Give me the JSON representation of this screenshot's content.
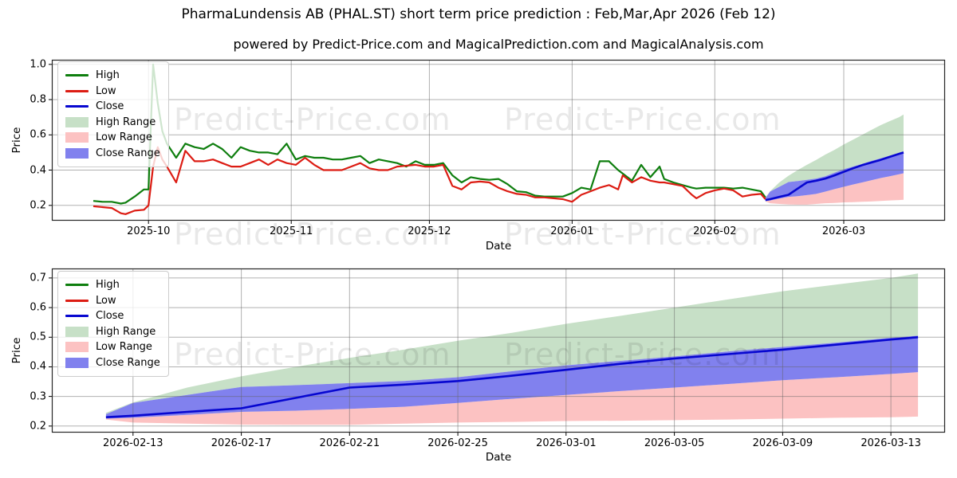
{
  "page": {
    "title": "PharmaLundensis AB (PHAL.ST) short term price prediction : Feb,Mar,Apr 2026 (Feb 12)",
    "subtitle": "powered by Predict-Price.com and MagicalPrediction.com and MagicalAnalysis.com"
  },
  "watermark": {
    "text": "Predict-Price.com"
  },
  "colors": {
    "high_line": "#0e7e0e",
    "low_line": "#dc1c13",
    "close_line": "#0707d0",
    "high_range": "#c7e0c7",
    "low_range": "#fcc2c2",
    "close_range": "#8181ee",
    "grid": "rgba(100,100,100,0.5)",
    "spine": "#262626",
    "tick": "#000000"
  },
  "legend": {
    "items": [
      {
        "label": "High",
        "swatch": "line",
        "color": "#0e7e0e"
      },
      {
        "label": "Low",
        "swatch": "line",
        "color": "#dc1c13"
      },
      {
        "label": "Close",
        "swatch": "line",
        "color": "#0707d0"
      },
      {
        "label": "High Range",
        "swatch": "patch",
        "color": "#c7e0c7"
      },
      {
        "label": "Low Range",
        "swatch": "patch",
        "color": "#fcc2c2"
      },
      {
        "label": "Close Range",
        "swatch": "patch",
        "color": "#8181ee"
      }
    ]
  },
  "chart_data": [
    {
      "type": "line",
      "name": "history-and-forecast",
      "xlabel": "Date",
      "ylabel": "Price",
      "grid": true,
      "legend_position": "upper left",
      "xlim": [
        "2025-09-10",
        "2026-03-23"
      ],
      "ylim": [
        0.113,
        1.026
      ],
      "x_ticks": [
        {
          "date": "2025-10-01",
          "label": "2025-10"
        },
        {
          "date": "2025-11-01",
          "label": "2025-11"
        },
        {
          "date": "2025-12-01",
          "label": "2025-12"
        },
        {
          "date": "2026-01-01",
          "label": "2026-01"
        },
        {
          "date": "2026-02-01",
          "label": "2026-02"
        },
        {
          "date": "2026-03-01",
          "label": "2026-03"
        }
      ],
      "y_ticks": [
        {
          "v": 0.2,
          "label": "0.2"
        },
        {
          "v": 0.4,
          "label": "0.4"
        },
        {
          "v": 0.6,
          "label": "0.6"
        },
        {
          "v": 0.8,
          "label": "0.8"
        },
        {
          "v": 1.0,
          "label": "1.0"
        }
      ],
      "series": {
        "dates": [
          "2025-09-19",
          "2025-09-21",
          "2025-09-23",
          "2025-09-25",
          "2025-09-26",
          "2025-09-28",
          "2025-09-30",
          "2025-10-01",
          "2025-10-02",
          "2025-10-03",
          "2025-10-04",
          "2025-10-05",
          "2025-10-07",
          "2025-10-09",
          "2025-10-11",
          "2025-10-13",
          "2025-10-15",
          "2025-10-17",
          "2025-10-19",
          "2025-10-21",
          "2025-10-23",
          "2025-10-25",
          "2025-10-27",
          "2025-10-29",
          "2025-10-31",
          "2025-11-02",
          "2025-11-04",
          "2025-11-06",
          "2025-11-08",
          "2025-11-10",
          "2025-11-12",
          "2025-11-14",
          "2025-11-16",
          "2025-11-18",
          "2025-11-20",
          "2025-11-22",
          "2025-11-24",
          "2025-11-26",
          "2025-11-28",
          "2025-11-30",
          "2025-12-02",
          "2025-12-04",
          "2025-12-06",
          "2025-12-08",
          "2025-12-10",
          "2025-12-12",
          "2025-12-14",
          "2025-12-16",
          "2025-12-18",
          "2025-12-20",
          "2025-12-22",
          "2025-12-24",
          "2025-12-26",
          "2025-12-28",
          "2025-12-30",
          "2026-01-01",
          "2026-01-03",
          "2026-01-05",
          "2026-01-07",
          "2026-01-09",
          "2026-01-11",
          "2026-01-12",
          "2026-01-14",
          "2026-01-16",
          "2026-01-18",
          "2026-01-20",
          "2026-01-21",
          "2026-01-23",
          "2026-01-25",
          "2026-01-27",
          "2026-01-28",
          "2026-01-30",
          "2026-02-01",
          "2026-02-03",
          "2026-02-05",
          "2026-02-07",
          "2026-02-09",
          "2026-02-11",
          "2026-02-12"
        ],
        "high": [
          0.225,
          0.22,
          0.22,
          0.21,
          0.215,
          0.25,
          0.29,
          0.29,
          1.0,
          0.78,
          0.62,
          0.55,
          0.47,
          0.55,
          0.53,
          0.52,
          0.55,
          0.52,
          0.47,
          0.53,
          0.51,
          0.5,
          0.5,
          0.49,
          0.55,
          0.46,
          0.48,
          0.47,
          0.47,
          0.46,
          0.46,
          0.47,
          0.48,
          0.44,
          0.46,
          0.45,
          0.44,
          0.42,
          0.45,
          0.43,
          0.43,
          0.44,
          0.37,
          0.33,
          0.36,
          0.35,
          0.345,
          0.35,
          0.32,
          0.28,
          0.275,
          0.255,
          0.25,
          0.25,
          0.25,
          0.27,
          0.3,
          0.29,
          0.45,
          0.45,
          0.4,
          0.38,
          0.34,
          0.43,
          0.36,
          0.42,
          0.35,
          0.33,
          0.315,
          0.3,
          0.295,
          0.3,
          0.3,
          0.3,
          0.295,
          0.3,
          0.29,
          0.28,
          0.245
        ],
        "low": [
          0.195,
          0.19,
          0.185,
          0.155,
          0.15,
          0.17,
          0.175,
          0.2,
          0.42,
          0.53,
          0.46,
          0.42,
          0.33,
          0.51,
          0.45,
          0.45,
          0.46,
          0.44,
          0.42,
          0.42,
          0.44,
          0.46,
          0.43,
          0.46,
          0.44,
          0.43,
          0.47,
          0.43,
          0.4,
          0.4,
          0.4,
          0.42,
          0.44,
          0.41,
          0.4,
          0.4,
          0.42,
          0.425,
          0.43,
          0.42,
          0.42,
          0.43,
          0.31,
          0.29,
          0.33,
          0.335,
          0.33,
          0.3,
          0.28,
          0.265,
          0.26,
          0.245,
          0.245,
          0.24,
          0.235,
          0.22,
          0.26,
          0.28,
          0.3,
          0.315,
          0.29,
          0.37,
          0.33,
          0.36,
          0.34,
          0.33,
          0.33,
          0.32,
          0.31,
          0.26,
          0.24,
          0.27,
          0.285,
          0.295,
          0.285,
          0.25,
          0.26,
          0.265,
          0.235
        ]
      },
      "forecast": {
        "dates": [
          "2026-02-12",
          "2026-02-13",
          "2026-02-15",
          "2026-02-17",
          "2026-02-19",
          "2026-02-21",
          "2026-02-23",
          "2026-02-25",
          "2026-02-27",
          "2026-03-01",
          "2026-03-03",
          "2026-03-05",
          "2026-03-07",
          "2026-03-09",
          "2026-03-11",
          "2026-03-13",
          "2026-03-14"
        ],
        "close": [
          0.23,
          0.235,
          0.248,
          0.26,
          0.295,
          0.33,
          0.34,
          0.352,
          0.37,
          0.39,
          0.41,
          0.428,
          0.443,
          0.458,
          0.475,
          0.492,
          0.5
        ],
        "close_max": [
          0.24,
          0.278,
          0.305,
          0.332,
          0.338,
          0.345,
          0.352,
          0.365,
          0.385,
          0.405,
          0.42,
          0.435,
          0.452,
          0.467,
          0.482,
          0.498,
          0.505
        ],
        "close_min": [
          0.225,
          0.228,
          0.238,
          0.248,
          0.252,
          0.258,
          0.265,
          0.278,
          0.292,
          0.305,
          0.318,
          0.33,
          0.342,
          0.355,
          0.365,
          0.376,
          0.382
        ],
        "high_max": [
          0.245,
          0.28,
          0.33,
          0.368,
          0.4,
          0.43,
          0.458,
          0.488,
          0.515,
          0.545,
          0.572,
          0.6,
          0.628,
          0.655,
          0.678,
          0.7,
          0.715
        ],
        "low_min": [
          0.222,
          0.212,
          0.208,
          0.205,
          0.204,
          0.204,
          0.208,
          0.212,
          0.214,
          0.217,
          0.218,
          0.22,
          0.222,
          0.225,
          0.228,
          0.23,
          0.232
        ]
      }
    },
    {
      "type": "line",
      "name": "forecast-detail",
      "xlabel": "Date",
      "ylabel": "Price",
      "grid": true,
      "legend_position": "upper left",
      "xlim": [
        "2026-02-10",
        "2026-03-15"
      ],
      "ylim": [
        0.178,
        0.732
      ],
      "x_ticks": [
        {
          "date": "2026-02-13",
          "label": "2026-02-13"
        },
        {
          "date": "2026-02-17",
          "label": "2026-02-17"
        },
        {
          "date": "2026-02-21",
          "label": "2026-02-21"
        },
        {
          "date": "2026-02-25",
          "label": "2026-02-25"
        },
        {
          "date": "2026-03-01",
          "label": "2026-03-01"
        },
        {
          "date": "2026-03-05",
          "label": "2026-03-05"
        },
        {
          "date": "2026-03-09",
          "label": "2026-03-09"
        },
        {
          "date": "2026-03-13",
          "label": "2026-03-13"
        }
      ],
      "y_ticks": [
        {
          "v": 0.2,
          "label": "0.2"
        },
        {
          "v": 0.3,
          "label": "0.3"
        },
        {
          "v": 0.4,
          "label": "0.4"
        },
        {
          "v": 0.5,
          "label": "0.5"
        },
        {
          "v": 0.6,
          "label": "0.6"
        },
        {
          "v": 0.7,
          "label": "0.7"
        }
      ],
      "series": null,
      "forecast": {
        "dates": [
          "2026-02-12",
          "2026-02-13",
          "2026-02-15",
          "2026-02-17",
          "2026-02-19",
          "2026-02-21",
          "2026-02-23",
          "2026-02-25",
          "2026-02-27",
          "2026-03-01",
          "2026-03-03",
          "2026-03-05",
          "2026-03-07",
          "2026-03-09",
          "2026-03-11",
          "2026-03-13",
          "2026-03-14"
        ],
        "close": [
          0.23,
          0.235,
          0.248,
          0.26,
          0.295,
          0.33,
          0.34,
          0.352,
          0.37,
          0.39,
          0.41,
          0.428,
          0.443,
          0.458,
          0.475,
          0.492,
          0.5
        ],
        "close_max": [
          0.24,
          0.278,
          0.305,
          0.332,
          0.338,
          0.345,
          0.352,
          0.365,
          0.385,
          0.405,
          0.42,
          0.435,
          0.452,
          0.467,
          0.482,
          0.498,
          0.505
        ],
        "close_min": [
          0.225,
          0.228,
          0.238,
          0.248,
          0.252,
          0.258,
          0.265,
          0.278,
          0.292,
          0.305,
          0.318,
          0.33,
          0.342,
          0.355,
          0.365,
          0.376,
          0.382
        ],
        "high_max": [
          0.245,
          0.28,
          0.33,
          0.368,
          0.4,
          0.43,
          0.458,
          0.488,
          0.515,
          0.545,
          0.572,
          0.6,
          0.628,
          0.655,
          0.678,
          0.7,
          0.715
        ],
        "low_min": [
          0.222,
          0.212,
          0.208,
          0.205,
          0.204,
          0.204,
          0.208,
          0.212,
          0.214,
          0.217,
          0.218,
          0.22,
          0.222,
          0.225,
          0.228,
          0.23,
          0.232
        ]
      }
    }
  ]
}
